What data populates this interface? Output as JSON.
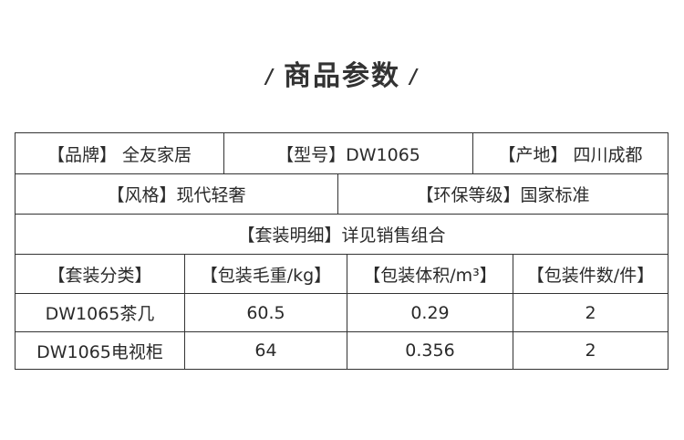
{
  "title": "商品参数",
  "params": {
    "brand": "【品牌】 全友家居",
    "model": "【型号】DW1065",
    "origin": "【产地】 四川成都",
    "style": "【风格】现代轻奢",
    "eco_grade": "【环保等级】国家标准",
    "set_detail": "【套装明细】详见销售组合"
  },
  "table": {
    "headers": [
      "【套装分类】",
      "【包装毛重/kg】",
      "【包装体积/m³】",
      "【包装件数/件】"
    ],
    "rows": [
      [
        "DW1065茶几",
        "60.5",
        "0.29",
        "2"
      ],
      [
        "DW1065电视柜",
        "64",
        "0.356",
        "2"
      ]
    ]
  }
}
